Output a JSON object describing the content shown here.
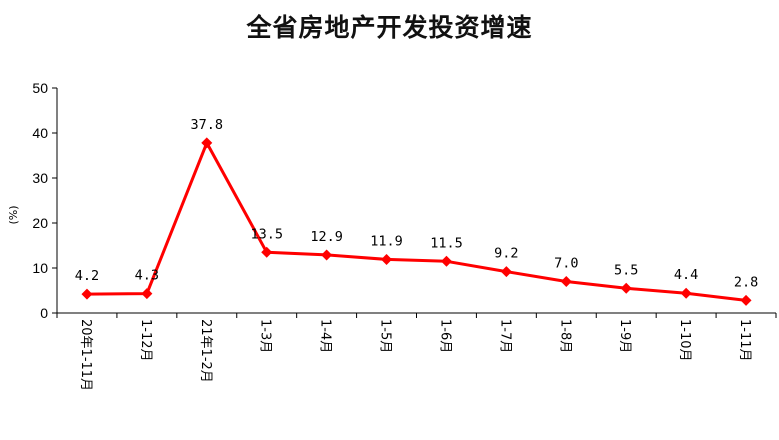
{
  "chart_data": {
    "type": "line",
    "title": "全省房地产开发投资增速",
    "ylabel": "(%)",
    "xlabel": "",
    "ylim": [
      0,
      50
    ],
    "yticks": [
      0,
      10,
      20,
      30,
      40,
      50
    ],
    "categories": [
      "20年1-11月",
      "1-12月",
      "21年1-2月",
      "1-3月",
      "1-4月",
      "1-5月",
      "1-6月",
      "1-7月",
      "1-8月",
      "1-9月",
      "1-10月",
      "1-11月"
    ],
    "series": [
      {
        "values": [
          4.2,
          4.3,
          37.8,
          13.5,
          12.9,
          11.9,
          11.5,
          9.2,
          7.0,
          5.5,
          4.4,
          2.8
        ],
        "labels": [
          "4.2",
          "4.3",
          "37.8",
          "13.5",
          "12.9",
          "11.9",
          "11.5",
          "9.2",
          "7.0",
          "5.5",
          "4.4",
          "2.8"
        ],
        "color": "#ff0000",
        "marker": "diamond"
      }
    ],
    "grid": false,
    "legend": "none"
  }
}
